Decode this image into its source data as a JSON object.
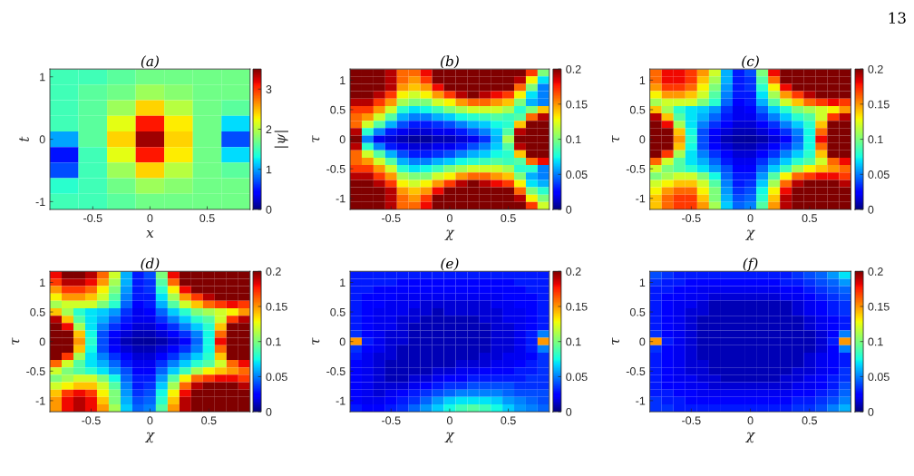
{
  "chart_data": [
    {
      "type": "heatmap",
      "title": "(a)",
      "xlabel": "x",
      "ylabel": "t",
      "clabel": "|ψ|",
      "categories": [
        null,
        "-0.5",
        null,
        "0",
        null,
        "0.5",
        null
      ],
      "y_categories": [
        "1",
        null,
        null,
        null,
        "0",
        null,
        null,
        null,
        "-1"
      ],
      "cells": [
        [
          1.5,
          1.5,
          1.6,
          1.7,
          1.7,
          1.7,
          1.7
        ],
        [
          1.5,
          1.6,
          1.7,
          1.9,
          1.8,
          1.7,
          1.7
        ],
        [
          1.5,
          1.6,
          1.9,
          2.4,
          2.0,
          1.7,
          1.6
        ],
        [
          1.5,
          1.6,
          2.2,
          3.1,
          2.3,
          1.7,
          1.2
        ],
        [
          1.0,
          1.6,
          2.4,
          3.4,
          2.4,
          1.7,
          0.7
        ],
        [
          0.5,
          1.5,
          2.2,
          3.1,
          2.3,
          1.7,
          1.2
        ],
        [
          0.7,
          1.5,
          1.9,
          2.4,
          2.0,
          1.7,
          1.6
        ],
        [
          1.4,
          1.5,
          1.7,
          1.9,
          1.8,
          1.7,
          1.7
        ],
        [
          1.5,
          1.5,
          1.6,
          1.7,
          1.7,
          1.7,
          1.7
        ]
      ],
      "clim": [
        0,
        3.5
      ],
      "cticks": [
        0,
        1,
        2,
        3
      ]
    },
    {
      "type": "heatmap",
      "title": "(b)",
      "xlabel": "χ",
      "ylabel": "τ",
      "categories": [
        null,
        null,
        null,
        "-0.5",
        null,
        null,
        null,
        null,
        "0",
        null,
        null,
        null,
        null,
        "0.5",
        null,
        null,
        null
      ],
      "y_categories": [
        null,
        "1",
        null,
        null,
        null,
        "0.5",
        null,
        null,
        null,
        "0",
        null,
        null,
        null,
        "-0.5",
        null,
        null,
        null,
        "-1",
        null
      ],
      "cells": [
        [
          0.2,
          0.2,
          0.2,
          0.19,
          0.16,
          0.16,
          0.18,
          0.2,
          0.2,
          0.2,
          0.2,
          0.2,
          0.2,
          0.2,
          0.2,
          0.17,
          0.1
        ],
        [
          0.2,
          0.2,
          0.2,
          0.19,
          0.16,
          0.15,
          0.17,
          0.2,
          0.2,
          0.2,
          0.2,
          0.2,
          0.2,
          0.2,
          0.19,
          0.13,
          0.07
        ],
        [
          0.2,
          0.2,
          0.2,
          0.19,
          0.15,
          0.14,
          0.15,
          0.18,
          0.2,
          0.2,
          0.2,
          0.2,
          0.2,
          0.2,
          0.16,
          0.1,
          0.05
        ],
        [
          0.2,
          0.2,
          0.19,
          0.17,
          0.13,
          0.12,
          0.13,
          0.15,
          0.17,
          0.19,
          0.2,
          0.19,
          0.18,
          0.17,
          0.13,
          0.07,
          0.05
        ],
        [
          0.19,
          0.19,
          0.17,
          0.15,
          0.11,
          0.1,
          0.1,
          0.12,
          0.13,
          0.15,
          0.16,
          0.16,
          0.15,
          0.14,
          0.1,
          0.06,
          0.05
        ],
        [
          0.17,
          0.17,
          0.15,
          0.12,
          0.08,
          0.07,
          0.075,
          0.085,
          0.1,
          0.11,
          0.12,
          0.12,
          0.12,
          0.11,
          0.08,
          0.1,
          0.14
        ],
        [
          0.16,
          0.15,
          0.12,
          0.09,
          0.06,
          0.05,
          0.05,
          0.06,
          0.065,
          0.075,
          0.08,
          0.085,
          0.09,
          0.085,
          0.09,
          0.16,
          0.19
        ],
        [
          0.16,
          0.12,
          0.09,
          0.06,
          0.04,
          0.03,
          0.03,
          0.035,
          0.04,
          0.05,
          0.06,
          0.065,
          0.075,
          0.08,
          0.14,
          0.2,
          0.2
        ],
        [
          0.19,
          0.08,
          0.05,
          0.03,
          0.02,
          0.015,
          0.015,
          0.02,
          0.02,
          0.03,
          0.04,
          0.05,
          0.065,
          0.09,
          0.19,
          0.2,
          0.2
        ],
        [
          0.2,
          0.05,
          0.02,
          0.015,
          0.01,
          0.005,
          0.005,
          0.01,
          0.01,
          0.015,
          0.02,
          0.035,
          0.06,
          0.11,
          0.2,
          0.2,
          0.2
        ],
        [
          0.19,
          0.08,
          0.05,
          0.03,
          0.02,
          0.015,
          0.015,
          0.02,
          0.02,
          0.03,
          0.04,
          0.05,
          0.065,
          0.09,
          0.19,
          0.2,
          0.2
        ],
        [
          0.16,
          0.12,
          0.09,
          0.06,
          0.04,
          0.03,
          0.03,
          0.035,
          0.04,
          0.05,
          0.06,
          0.065,
          0.075,
          0.08,
          0.14,
          0.2,
          0.2
        ],
        [
          0.16,
          0.15,
          0.12,
          0.09,
          0.06,
          0.05,
          0.05,
          0.06,
          0.065,
          0.075,
          0.08,
          0.085,
          0.09,
          0.085,
          0.09,
          0.16,
          0.18
        ],
        [
          0.17,
          0.17,
          0.15,
          0.12,
          0.08,
          0.07,
          0.075,
          0.085,
          0.1,
          0.11,
          0.12,
          0.12,
          0.12,
          0.11,
          0.08,
          0.08,
          0.05
        ],
        [
          0.19,
          0.19,
          0.17,
          0.15,
          0.11,
          0.1,
          0.1,
          0.12,
          0.13,
          0.15,
          0.16,
          0.16,
          0.15,
          0.14,
          0.1,
          0.06,
          0.05
        ],
        [
          0.2,
          0.2,
          0.19,
          0.17,
          0.13,
          0.12,
          0.13,
          0.15,
          0.17,
          0.19,
          0.2,
          0.19,
          0.18,
          0.17,
          0.13,
          0.07,
          0.06
        ],
        [
          0.2,
          0.2,
          0.2,
          0.19,
          0.15,
          0.14,
          0.15,
          0.18,
          0.2,
          0.2,
          0.2,
          0.2,
          0.2,
          0.2,
          0.16,
          0.1,
          0.08
        ],
        [
          0.2,
          0.2,
          0.2,
          0.19,
          0.16,
          0.15,
          0.17,
          0.2,
          0.2,
          0.2,
          0.2,
          0.2,
          0.2,
          0.2,
          0.19,
          0.13,
          0.1
        ],
        [
          0.2,
          0.2,
          0.2,
          0.19,
          0.16,
          0.16,
          0.18,
          0.2,
          0.2,
          0.2,
          0.2,
          0.2,
          0.2,
          0.2,
          0.2,
          0.17,
          0.12
        ]
      ],
      "clim": [
        0,
        0.2
      ],
      "cticks": [
        0,
        0.05,
        0.1,
        0.15,
        0.2
      ]
    },
    {
      "type": "heatmap",
      "title": "(c)",
      "xlabel": "χ",
      "ylabel": "τ",
      "annotations": [
        "13"
      ],
      "categories": [
        null,
        null,
        null,
        "-0.5",
        null,
        null,
        null,
        null,
        "0",
        null,
        null,
        null,
        null,
        "0.5",
        null,
        null,
        null
      ],
      "y_categories": [
        null,
        "1",
        null,
        null,
        null,
        "0.5",
        null,
        null,
        null,
        "0",
        null,
        null,
        null,
        "-0.5",
        null,
        null,
        null,
        "-1",
        null
      ],
      "cells": [
        [
          0.16,
          0.18,
          0.18,
          0.17,
          0.15,
          0.12,
          0.06,
          0.03,
          0.04,
          0.1,
          0.18,
          0.2,
          0.2,
          0.2,
          0.2,
          0.2,
          0.2
        ],
        [
          0.16,
          0.18,
          0.18,
          0.17,
          0.14,
          0.11,
          0.06,
          0.03,
          0.035,
          0.09,
          0.16,
          0.2,
          0.2,
          0.2,
          0.2,
          0.2,
          0.2
        ],
        [
          0.15,
          0.17,
          0.17,
          0.16,
          0.13,
          0.1,
          0.055,
          0.03,
          0.035,
          0.08,
          0.13,
          0.18,
          0.2,
          0.2,
          0.2,
          0.2,
          0.2
        ],
        [
          0.13,
          0.15,
          0.15,
          0.14,
          0.12,
          0.09,
          0.05,
          0.03,
          0.03,
          0.07,
          0.11,
          0.15,
          0.17,
          0.19,
          0.2,
          0.2,
          0.2
        ],
        [
          0.11,
          0.12,
          0.12,
          0.12,
          0.1,
          0.08,
          0.045,
          0.025,
          0.03,
          0.06,
          0.09,
          0.12,
          0.14,
          0.16,
          0.17,
          0.18,
          0.17
        ],
        [
          0.14,
          0.11,
          0.08,
          0.07,
          0.065,
          0.055,
          0.035,
          0.02,
          0.025,
          0.045,
          0.065,
          0.08,
          0.1,
          0.11,
          0.12,
          0.13,
          0.15
        ],
        [
          0.19,
          0.14,
          0.09,
          0.07,
          0.06,
          0.045,
          0.03,
          0.02,
          0.02,
          0.035,
          0.05,
          0.065,
          0.08,
          0.09,
          0.12,
          0.17,
          0.19
        ],
        [
          0.2,
          0.18,
          0.11,
          0.07,
          0.05,
          0.035,
          0.025,
          0.015,
          0.015,
          0.025,
          0.035,
          0.05,
          0.065,
          0.08,
          0.14,
          0.2,
          0.2
        ],
        [
          0.2,
          0.2,
          0.14,
          0.075,
          0.04,
          0.025,
          0.015,
          0.01,
          0.01,
          0.015,
          0.025,
          0.035,
          0.05,
          0.075,
          0.16,
          0.2,
          0.2
        ],
        [
          0.2,
          0.2,
          0.15,
          0.08,
          0.04,
          0.02,
          0.01,
          0.006,
          0.005,
          0.008,
          0.015,
          0.025,
          0.045,
          0.075,
          0.18,
          0.2,
          0.2
        ],
        [
          0.2,
          0.2,
          0.14,
          0.075,
          0.04,
          0.025,
          0.015,
          0.01,
          0.01,
          0.015,
          0.025,
          0.035,
          0.05,
          0.075,
          0.16,
          0.2,
          0.2
        ],
        [
          0.2,
          0.17,
          0.11,
          0.07,
          0.05,
          0.035,
          0.025,
          0.015,
          0.015,
          0.025,
          0.035,
          0.05,
          0.065,
          0.08,
          0.14,
          0.2,
          0.2
        ],
        [
          0.16,
          0.12,
          0.09,
          0.07,
          0.06,
          0.045,
          0.03,
          0.02,
          0.02,
          0.035,
          0.05,
          0.065,
          0.08,
          0.09,
          0.12,
          0.16,
          0.18
        ],
        [
          0.12,
          0.1,
          0.09,
          0.08,
          0.07,
          0.055,
          0.04,
          0.025,
          0.025,
          0.045,
          0.065,
          0.085,
          0.11,
          0.13,
          0.14,
          0.15,
          0.16
        ],
        [
          0.1,
          0.11,
          0.12,
          0.12,
          0.1,
          0.075,
          0.045,
          0.03,
          0.03,
          0.055,
          0.09,
          0.13,
          0.16,
          0.17,
          0.18,
          0.18,
          0.17
        ],
        [
          0.12,
          0.13,
          0.14,
          0.14,
          0.12,
          0.09,
          0.05,
          0.03,
          0.035,
          0.065,
          0.11,
          0.16,
          0.19,
          0.2,
          0.2,
          0.2,
          0.19
        ],
        [
          0.13,
          0.15,
          0.16,
          0.16,
          0.13,
          0.1,
          0.055,
          0.035,
          0.04,
          0.075,
          0.13,
          0.18,
          0.2,
          0.2,
          0.2,
          0.2,
          0.2
        ],
        [
          0.14,
          0.16,
          0.17,
          0.17,
          0.14,
          0.1,
          0.06,
          0.04,
          0.045,
          0.08,
          0.14,
          0.19,
          0.2,
          0.2,
          0.2,
          0.2,
          0.2
        ],
        [
          0.14,
          0.16,
          0.17,
          0.17,
          0.15,
          0.11,
          0.065,
          0.045,
          0.05,
          0.09,
          0.15,
          0.19,
          0.2,
          0.2,
          0.2,
          0.2,
          0.2
        ]
      ],
      "clim": [
        0,
        0.2
      ],
      "cticks": [
        0,
        0.05,
        0.1,
        0.15,
        0.2
      ]
    },
    {
      "type": "heatmap",
      "title": "(d)",
      "xlabel": "χ",
      "ylabel": "τ",
      "categories": [
        null,
        null,
        null,
        "-0.5",
        null,
        null,
        null,
        null,
        "0",
        null,
        null,
        null,
        null,
        "0.5",
        null,
        null,
        null
      ],
      "y_categories": [
        null,
        "1",
        null,
        null,
        null,
        "0.5",
        null,
        null,
        null,
        "0",
        null,
        null,
        null,
        "-0.5",
        null,
        null,
        null,
        "-1",
        null
      ],
      "cells": [
        [
          0.18,
          0.2,
          0.2,
          0.19,
          0.16,
          0.12,
          0.06,
          0.03,
          0.04,
          0.1,
          0.18,
          0.2,
          0.2,
          0.2,
          0.2,
          0.2,
          0.2
        ],
        [
          0.17,
          0.19,
          0.19,
          0.18,
          0.15,
          0.11,
          0.06,
          0.03,
          0.035,
          0.09,
          0.16,
          0.2,
          0.2,
          0.2,
          0.2,
          0.2,
          0.2
        ],
        [
          0.15,
          0.17,
          0.17,
          0.16,
          0.13,
          0.1,
          0.055,
          0.03,
          0.035,
          0.08,
          0.13,
          0.18,
          0.2,
          0.2,
          0.2,
          0.2,
          0.2
        ],
        [
          0.13,
          0.15,
          0.15,
          0.14,
          0.12,
          0.09,
          0.05,
          0.03,
          0.03,
          0.07,
          0.11,
          0.15,
          0.17,
          0.19,
          0.2,
          0.2,
          0.2
        ],
        [
          0.11,
          0.12,
          0.12,
          0.12,
          0.1,
          0.08,
          0.045,
          0.025,
          0.03,
          0.06,
          0.09,
          0.12,
          0.14,
          0.16,
          0.17,
          0.18,
          0.17
        ],
        [
          0.14,
          0.11,
          0.08,
          0.07,
          0.065,
          0.055,
          0.035,
          0.02,
          0.025,
          0.045,
          0.065,
          0.08,
          0.1,
          0.11,
          0.12,
          0.13,
          0.15
        ],
        [
          0.19,
          0.14,
          0.09,
          0.07,
          0.06,
          0.045,
          0.03,
          0.02,
          0.02,
          0.035,
          0.05,
          0.065,
          0.08,
          0.09,
          0.12,
          0.17,
          0.19
        ],
        [
          0.2,
          0.18,
          0.11,
          0.07,
          0.05,
          0.035,
          0.025,
          0.015,
          0.015,
          0.025,
          0.035,
          0.05,
          0.065,
          0.08,
          0.14,
          0.2,
          0.2
        ],
        [
          0.2,
          0.2,
          0.14,
          0.075,
          0.04,
          0.025,
          0.015,
          0.01,
          0.01,
          0.015,
          0.025,
          0.035,
          0.05,
          0.075,
          0.16,
          0.2,
          0.2
        ],
        [
          0.2,
          0.2,
          0.15,
          0.08,
          0.04,
          0.02,
          0.01,
          0.006,
          0.005,
          0.008,
          0.015,
          0.025,
          0.045,
          0.075,
          0.18,
          0.2,
          0.2
        ],
        [
          0.2,
          0.2,
          0.14,
          0.075,
          0.04,
          0.025,
          0.015,
          0.01,
          0.01,
          0.015,
          0.025,
          0.035,
          0.05,
          0.075,
          0.16,
          0.2,
          0.2
        ],
        [
          0.2,
          0.17,
          0.11,
          0.07,
          0.05,
          0.035,
          0.025,
          0.015,
          0.015,
          0.025,
          0.035,
          0.05,
          0.065,
          0.08,
          0.14,
          0.2,
          0.2
        ],
        [
          0.16,
          0.12,
          0.09,
          0.07,
          0.06,
          0.045,
          0.03,
          0.02,
          0.02,
          0.035,
          0.05,
          0.065,
          0.08,
          0.09,
          0.12,
          0.16,
          0.18
        ],
        [
          0.12,
          0.1,
          0.09,
          0.08,
          0.07,
          0.055,
          0.04,
          0.025,
          0.025,
          0.045,
          0.065,
          0.085,
          0.11,
          0.13,
          0.14,
          0.15,
          0.16
        ],
        [
          0.1,
          0.11,
          0.12,
          0.12,
          0.1,
          0.075,
          0.045,
          0.03,
          0.03,
          0.055,
          0.09,
          0.13,
          0.16,
          0.17,
          0.18,
          0.18,
          0.17
        ],
        [
          0.12,
          0.13,
          0.14,
          0.14,
          0.12,
          0.09,
          0.05,
          0.03,
          0.035,
          0.065,
          0.11,
          0.16,
          0.19,
          0.2,
          0.2,
          0.2,
          0.19
        ],
        [
          0.14,
          0.17,
          0.18,
          0.17,
          0.13,
          0.1,
          0.055,
          0.035,
          0.04,
          0.075,
          0.13,
          0.18,
          0.2,
          0.2,
          0.2,
          0.2,
          0.2
        ],
        [
          0.15,
          0.18,
          0.19,
          0.18,
          0.14,
          0.1,
          0.06,
          0.04,
          0.045,
          0.08,
          0.14,
          0.19,
          0.2,
          0.2,
          0.2,
          0.2,
          0.2
        ],
        [
          0.15,
          0.18,
          0.19,
          0.18,
          0.15,
          0.11,
          0.065,
          0.045,
          0.05,
          0.09,
          0.15,
          0.19,
          0.2,
          0.2,
          0.2,
          0.2,
          0.2
        ]
      ],
      "clim": [
        0,
        0.2
      ],
      "cticks": [
        0,
        0.05,
        0.1,
        0.15,
        0.2
      ]
    },
    {
      "type": "heatmap",
      "title": "(e)",
      "xlabel": "χ",
      "ylabel": "τ",
      "categories": [
        null,
        null,
        null,
        "-0.5",
        null,
        null,
        null,
        null,
        "0",
        null,
        null,
        null,
        null,
        "0.5",
        null,
        null,
        null
      ],
      "y_categories": [
        null,
        "1",
        null,
        null,
        null,
        "0.5",
        null,
        null,
        null,
        "0",
        null,
        null,
        null,
        "-0.5",
        null,
        null,
        null,
        "-1",
        null
      ],
      "cells": [
        [
          0.03,
          0.03,
          0.03,
          0.03,
          0.03,
          0.03,
          0.03,
          0.03,
          0.03,
          0.03,
          0.03,
          0.03,
          0.03,
          0.03,
          0.03,
          0.03,
          0.03
        ],
        [
          0.03,
          0.03,
          0.03,
          0.03,
          0.025,
          0.025,
          0.025,
          0.025,
          0.025,
          0.025,
          0.025,
          0.025,
          0.025,
          0.025,
          0.03,
          0.03,
          0.03
        ],
        [
          0.03,
          0.03,
          0.025,
          0.025,
          0.025,
          0.025,
          0.025,
          0.025,
          0.025,
          0.025,
          0.025,
          0.025,
          0.025,
          0.025,
          0.025,
          0.03,
          0.03
        ],
        [
          0.03,
          0.025,
          0.025,
          0.025,
          0.02,
          0.02,
          0.02,
          0.02,
          0.02,
          0.02,
          0.02,
          0.02,
          0.02,
          0.025,
          0.025,
          0.025,
          0.03
        ],
        [
          0.03,
          0.025,
          0.025,
          0.02,
          0.02,
          0.02,
          0.015,
          0.015,
          0.015,
          0.015,
          0.015,
          0.015,
          0.02,
          0.02,
          0.025,
          0.025,
          0.03
        ],
        [
          0.03,
          0.025,
          0.02,
          0.02,
          0.02,
          0.015,
          0.015,
          0.01,
          0.015,
          0.015,
          0.015,
          0.015,
          0.015,
          0.02,
          0.02,
          0.025,
          0.03
        ],
        [
          0.03,
          0.025,
          0.02,
          0.02,
          0.015,
          0.015,
          0.01,
          0.01,
          0.01,
          0.01,
          0.01,
          0.015,
          0.015,
          0.02,
          0.02,
          0.025,
          0.03
        ],
        [
          0.03,
          0.025,
          0.02,
          0.02,
          0.015,
          0.01,
          0.01,
          0.01,
          0.01,
          0.01,
          0.01,
          0.01,
          0.015,
          0.015,
          0.02,
          0.025,
          0.03
        ],
        [
          0.035,
          0.025,
          0.02,
          0.015,
          0.015,
          0.01,
          0.01,
          0.01,
          0.01,
          0.01,
          0.01,
          0.01,
          0.015,
          0.015,
          0.02,
          0.03,
          0.05
        ],
        [
          0.15,
          0.03,
          0.02,
          0.015,
          0.015,
          0.01,
          0.01,
          0.01,
          0.01,
          0.01,
          0.01,
          0.01,
          0.015,
          0.015,
          0.02,
          0.03,
          0.15
        ],
        [
          0.035,
          0.025,
          0.02,
          0.015,
          0.01,
          0.01,
          0.01,
          0.01,
          0.01,
          0.01,
          0.01,
          0.01,
          0.015,
          0.015,
          0.02,
          0.03,
          0.05
        ],
        [
          0.03,
          0.02,
          0.015,
          0.015,
          0.01,
          0.01,
          0.01,
          0.01,
          0.01,
          0.01,
          0.01,
          0.015,
          0.015,
          0.02,
          0.02,
          0.025,
          0.035
        ],
        [
          0.025,
          0.02,
          0.015,
          0.01,
          0.01,
          0.01,
          0.01,
          0.01,
          0.01,
          0.015,
          0.015,
          0.015,
          0.02,
          0.02,
          0.025,
          0.03,
          0.035
        ],
        [
          0.025,
          0.02,
          0.015,
          0.01,
          0.01,
          0.01,
          0.01,
          0.015,
          0.015,
          0.02,
          0.02,
          0.025,
          0.025,
          0.025,
          0.03,
          0.03,
          0.035
        ],
        [
          0.025,
          0.02,
          0.015,
          0.01,
          0.01,
          0.015,
          0.015,
          0.02,
          0.025,
          0.025,
          0.03,
          0.03,
          0.03,
          0.03,
          0.03,
          0.035,
          0.035
        ],
        [
          0.025,
          0.02,
          0.015,
          0.015,
          0.015,
          0.02,
          0.025,
          0.03,
          0.035,
          0.035,
          0.04,
          0.04,
          0.04,
          0.04,
          0.035,
          0.035,
          0.035
        ],
        [
          0.025,
          0.02,
          0.015,
          0.02,
          0.025,
          0.03,
          0.035,
          0.04,
          0.045,
          0.05,
          0.05,
          0.05,
          0.05,
          0.045,
          0.04,
          0.04,
          0.04
        ],
        [
          0.025,
          0.02,
          0.02,
          0.025,
          0.03,
          0.035,
          0.045,
          0.055,
          0.065,
          0.07,
          0.07,
          0.07,
          0.065,
          0.055,
          0.05,
          0.045,
          0.04
        ],
        [
          0.03,
          0.025,
          0.025,
          0.03,
          0.035,
          0.045,
          0.055,
          0.065,
          0.075,
          0.085,
          0.09,
          0.085,
          0.075,
          0.065,
          0.055,
          0.05,
          0.045
        ]
      ],
      "clim": [
        0,
        0.2
      ],
      "cticks": [
        0,
        0.05,
        0.1,
        0.15,
        0.2
      ]
    },
    {
      "type": "heatmap",
      "title": "(f)",
      "xlabel": "χ",
      "ylabel": "τ",
      "categories": [
        null,
        null,
        null,
        "-0.5",
        null,
        null,
        null,
        null,
        "0",
        null,
        null,
        null,
        null,
        "0.5",
        null,
        null,
        null
      ],
      "y_categories": [
        null,
        "1",
        null,
        null,
        null,
        "0.5",
        null,
        null,
        null,
        "0",
        null,
        null,
        null,
        "-0.5",
        null,
        null,
        null,
        "-1",
        null
      ],
      "cells": [
        [
          0.04,
          0.035,
          0.03,
          0.03,
          0.03,
          0.03,
          0.03,
          0.03,
          0.03,
          0.03,
          0.03,
          0.03,
          0.035,
          0.04,
          0.045,
          0.055,
          0.07
        ],
        [
          0.035,
          0.03,
          0.03,
          0.025,
          0.025,
          0.025,
          0.025,
          0.025,
          0.025,
          0.025,
          0.025,
          0.03,
          0.03,
          0.035,
          0.04,
          0.045,
          0.055
        ],
        [
          0.03,
          0.03,
          0.025,
          0.025,
          0.02,
          0.02,
          0.02,
          0.02,
          0.02,
          0.02,
          0.02,
          0.025,
          0.025,
          0.03,
          0.035,
          0.04,
          0.045
        ],
        [
          0.03,
          0.025,
          0.025,
          0.02,
          0.02,
          0.015,
          0.015,
          0.015,
          0.015,
          0.015,
          0.015,
          0.02,
          0.02,
          0.025,
          0.03,
          0.035,
          0.04
        ],
        [
          0.03,
          0.025,
          0.02,
          0.02,
          0.015,
          0.01,
          0.01,
          0.01,
          0.01,
          0.01,
          0.01,
          0.01,
          0.015,
          0.02,
          0.025,
          0.03,
          0.035
        ],
        [
          0.03,
          0.025,
          0.02,
          0.015,
          0.015,
          0.01,
          0.01,
          0.01,
          0.01,
          0.01,
          0.01,
          0.01,
          0.015,
          0.02,
          0.025,
          0.03,
          0.035
        ],
        [
          0.03,
          0.025,
          0.02,
          0.015,
          0.01,
          0.01,
          0.01,
          0.01,
          0.01,
          0.01,
          0.01,
          0.01,
          0.01,
          0.015,
          0.02,
          0.025,
          0.03
        ],
        [
          0.03,
          0.025,
          0.02,
          0.015,
          0.01,
          0.01,
          0.01,
          0.01,
          0.01,
          0.01,
          0.01,
          0.01,
          0.01,
          0.015,
          0.02,
          0.025,
          0.03
        ],
        [
          0.035,
          0.025,
          0.02,
          0.015,
          0.01,
          0.01,
          0.01,
          0.01,
          0.01,
          0.01,
          0.01,
          0.01,
          0.01,
          0.01,
          0.015,
          0.025,
          0.05
        ],
        [
          0.15,
          0.03,
          0.02,
          0.015,
          0.01,
          0.01,
          0.01,
          0.01,
          0.01,
          0.01,
          0.01,
          0.01,
          0.01,
          0.01,
          0.015,
          0.03,
          0.15
        ],
        [
          0.035,
          0.025,
          0.02,
          0.015,
          0.01,
          0.01,
          0.01,
          0.01,
          0.01,
          0.01,
          0.01,
          0.01,
          0.01,
          0.01,
          0.015,
          0.025,
          0.05
        ],
        [
          0.03,
          0.025,
          0.02,
          0.015,
          0.01,
          0.01,
          0.01,
          0.01,
          0.01,
          0.01,
          0.01,
          0.01,
          0.01,
          0.015,
          0.02,
          0.025,
          0.03
        ],
        [
          0.03,
          0.025,
          0.02,
          0.015,
          0.015,
          0.01,
          0.01,
          0.01,
          0.01,
          0.01,
          0.01,
          0.01,
          0.01,
          0.015,
          0.02,
          0.025,
          0.03
        ],
        [
          0.03,
          0.025,
          0.02,
          0.015,
          0.015,
          0.01,
          0.01,
          0.01,
          0.01,
          0.01,
          0.01,
          0.01,
          0.015,
          0.015,
          0.02,
          0.025,
          0.035
        ],
        [
          0.03,
          0.025,
          0.02,
          0.02,
          0.015,
          0.015,
          0.01,
          0.01,
          0.01,
          0.01,
          0.01,
          0.015,
          0.015,
          0.02,
          0.025,
          0.03,
          0.035
        ],
        [
          0.03,
          0.025,
          0.025,
          0.02,
          0.02,
          0.015,
          0.015,
          0.015,
          0.015,
          0.015,
          0.015,
          0.015,
          0.02,
          0.02,
          0.025,
          0.03,
          0.04
        ],
        [
          0.03,
          0.03,
          0.025,
          0.025,
          0.02,
          0.02,
          0.02,
          0.02,
          0.02,
          0.02,
          0.02,
          0.02,
          0.025,
          0.025,
          0.03,
          0.035,
          0.045
        ],
        [
          0.035,
          0.03,
          0.03,
          0.025,
          0.025,
          0.025,
          0.025,
          0.025,
          0.025,
          0.025,
          0.025,
          0.025,
          0.03,
          0.03,
          0.035,
          0.04,
          0.05
        ],
        [
          0.035,
          0.035,
          0.03,
          0.03,
          0.03,
          0.03,
          0.03,
          0.03,
          0.03,
          0.03,
          0.03,
          0.03,
          0.035,
          0.035,
          0.04,
          0.05,
          0.06
        ]
      ],
      "clim": [
        0,
        0.2
      ],
      "cticks": [
        0,
        0.05,
        0.1,
        0.15,
        0.2
      ]
    }
  ]
}
